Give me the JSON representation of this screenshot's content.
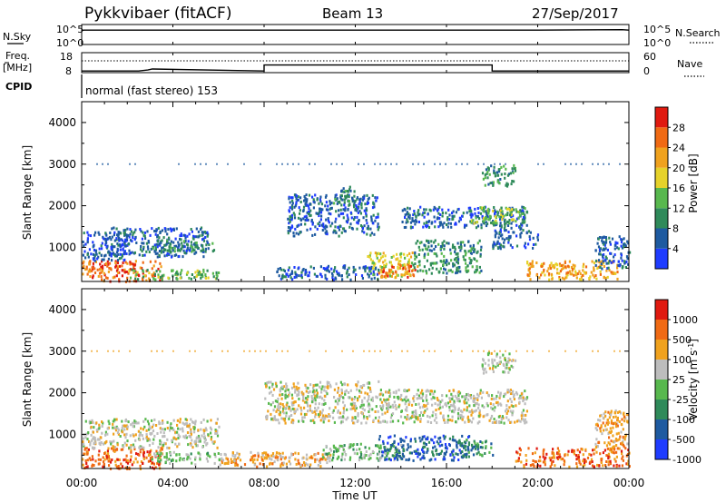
{
  "header": {
    "station": "Pykkvibaer (fitACF)",
    "beam": "Beam 13",
    "date": "27/Sep/2017"
  },
  "aux_panels": {
    "nsky": {
      "label": "N.Sky",
      "tick_top": "10^5",
      "tick_bottom": "10^0"
    },
    "nsearch": {
      "label": "N.Search",
      "tick_top": "10^5",
      "tick_bottom": "10^0"
    },
    "freq": {
      "label_1": "Freq.",
      "label_2": "[MHz]",
      "tick_top": "18",
      "tick_bottom": "8"
    },
    "nave": {
      "label": "Nave",
      "tick_top": "60",
      "tick_bottom": "0"
    },
    "cpid": {
      "label": "CPID",
      "value": "normal (fast stereo) 153"
    }
  },
  "axes": {
    "ylabel": "Slant Range [km]",
    "yticks": [
      "1000",
      "2000",
      "3000",
      "4000"
    ],
    "xlabel": "Time UT",
    "xticks": [
      "00:00",
      "04:00",
      "08:00",
      "12:00",
      "16:00",
      "20:00",
      "00:00"
    ]
  },
  "colorbars": {
    "power": {
      "label": "Power [dB]",
      "ticks": [
        "4",
        "8",
        "12",
        "16",
        "20",
        "24",
        "28"
      ],
      "colors": [
        "#1f3cff",
        "#1e5aa0",
        "#2f8a5a",
        "#58b84e",
        "#e6d22a",
        "#f0a21e",
        "#f06a14",
        "#e01a10"
      ]
    },
    "velocity": {
      "label": "Velocity [m s",
      "label_sup": "-1",
      "label_close": "]",
      "ticks": [
        "1000",
        "500",
        "100",
        "25",
        "-25",
        "-100",
        "-500",
        "-1000"
      ],
      "colors": [
        "#1f3cff",
        "#1e5aa0",
        "#2f8a5a",
        "#58b84e",
        "#bdbdbd",
        "#f0a21e",
        "#f06a14",
        "#e01a10"
      ]
    }
  },
  "chart_data": [
    {
      "type": "line",
      "name": "nsky",
      "x": [
        0,
        0.1,
        6,
        12,
        16,
        18,
        20,
        23.7,
        24
      ],
      "y": [
        3.5,
        3.6,
        3.6,
        3.6,
        3.6,
        3.6,
        3.6,
        3.7,
        3.6
      ],
      "ylim": [
        0,
        5
      ],
      "xlim": [
        0,
        24
      ]
    },
    {
      "type": "line",
      "name": "frequency",
      "x": [
        0,
        2.5,
        2.9,
        3.1,
        8.0,
        8.0,
        18.0,
        18.0,
        24
      ],
      "y": [
        8.8,
        8.8,
        9.3,
        9.8,
        8.8,
        11.8,
        11.8,
        8.8,
        8.8
      ],
      "ylim": [
        8,
        18
      ],
      "xlim": [
        0,
        24
      ]
    },
    {
      "type": "heatmap",
      "name": "power",
      "xlabel": "Time UT",
      "ylabel": "Slant Range [km]",
      "xlim": [
        0,
        24
      ],
      "ylim": [
        180,
        4500
      ],
      "colorbar": "Power [dB]",
      "regions": [
        {
          "x0": 0.0,
          "x1": 3.5,
          "y0": 200,
          "y1": 700,
          "level": 6
        },
        {
          "x0": 0.0,
          "x1": 2.0,
          "y0": 700,
          "y1": 1400,
          "level": 1
        },
        {
          "x0": 1.0,
          "x1": 5.5,
          "y0": 800,
          "y1": 1500,
          "level": 1
        },
        {
          "x0": 3.0,
          "x1": 5.8,
          "y0": 900,
          "y1": 1200,
          "level": 2
        },
        {
          "x0": 2.0,
          "x1": 6.0,
          "y0": 250,
          "y1": 500,
          "level": 3
        },
        {
          "x0": 8.5,
          "x1": 13.0,
          "y0": 250,
          "y1": 600,
          "level": 1
        },
        {
          "x0": 9.0,
          "x1": 13.0,
          "y0": 1300,
          "y1": 2300,
          "level": 1
        },
        {
          "x0": 11.0,
          "x1": 12.0,
          "y0": 2000,
          "y1": 2500,
          "level": 2
        },
        {
          "x0": 12.5,
          "x1": 14.5,
          "y0": 300,
          "y1": 900,
          "level": 4
        },
        {
          "x0": 13.0,
          "x1": 14.8,
          "y0": 300,
          "y1": 600,
          "level": 6
        },
        {
          "x0": 14.5,
          "x1": 17.5,
          "y0": 400,
          "y1": 1200,
          "level": 2
        },
        {
          "x0": 14.0,
          "x1": 19.5,
          "y0": 1500,
          "y1": 2000,
          "level": 1
        },
        {
          "x0": 17.0,
          "x1": 19.5,
          "y0": 1600,
          "y1": 2000,
          "level": 3
        },
        {
          "x0": 17.5,
          "x1": 19.0,
          "y0": 2500,
          "y1": 3000,
          "level": 2
        },
        {
          "x0": 18.0,
          "x1": 20.0,
          "y0": 1000,
          "y1": 1500,
          "level": 1
        },
        {
          "x0": 19.5,
          "x1": 23.5,
          "y0": 250,
          "y1": 700,
          "level": 5
        },
        {
          "x0": 22.5,
          "x1": 24.0,
          "y0": 500,
          "y1": 1300,
          "level": 1
        }
      ]
    },
    {
      "type": "heatmap",
      "name": "velocity",
      "xlabel": "Time UT",
      "ylabel": "Slant Range [km]",
      "xlim": [
        0,
        24
      ],
      "ylim": [
        180,
        4500
      ],
      "colorbar": "Velocity [m s-1]",
      "regions": [
        {
          "x0": 0.0,
          "x1": 3.5,
          "y0": 200,
          "y1": 700,
          "level": 6
        },
        {
          "x0": 0.0,
          "x1": 6.0,
          "y0": 700,
          "y1": 1400,
          "level": 4
        },
        {
          "x0": 3.0,
          "x1": 6.0,
          "y0": 300,
          "y1": 600,
          "level": 3
        },
        {
          "x0": 6.0,
          "x1": 11.0,
          "y0": 250,
          "y1": 600,
          "level": 5
        },
        {
          "x0": 8.0,
          "x1": 13.0,
          "y0": 1300,
          "y1": 2300,
          "level": 4
        },
        {
          "x0": 10.5,
          "x1": 14.0,
          "y0": 400,
          "y1": 800,
          "level": 3
        },
        {
          "x0": 13.0,
          "x1": 17.0,
          "y0": 400,
          "y1": 1000,
          "level": 1
        },
        {
          "x0": 13.0,
          "x1": 19.5,
          "y0": 1300,
          "y1": 2100,
          "level": 4
        },
        {
          "x0": 16.5,
          "x1": 18.0,
          "y0": 500,
          "y1": 900,
          "level": 2
        },
        {
          "x0": 17.5,
          "x1": 19.0,
          "y0": 2500,
          "y1": 3000,
          "level": 4
        },
        {
          "x0": 19.0,
          "x1": 24.0,
          "y0": 250,
          "y1": 700,
          "level": 6
        },
        {
          "x0": 22.5,
          "x1": 24.0,
          "y0": 700,
          "y1": 1600,
          "level": 5
        }
      ]
    }
  ]
}
